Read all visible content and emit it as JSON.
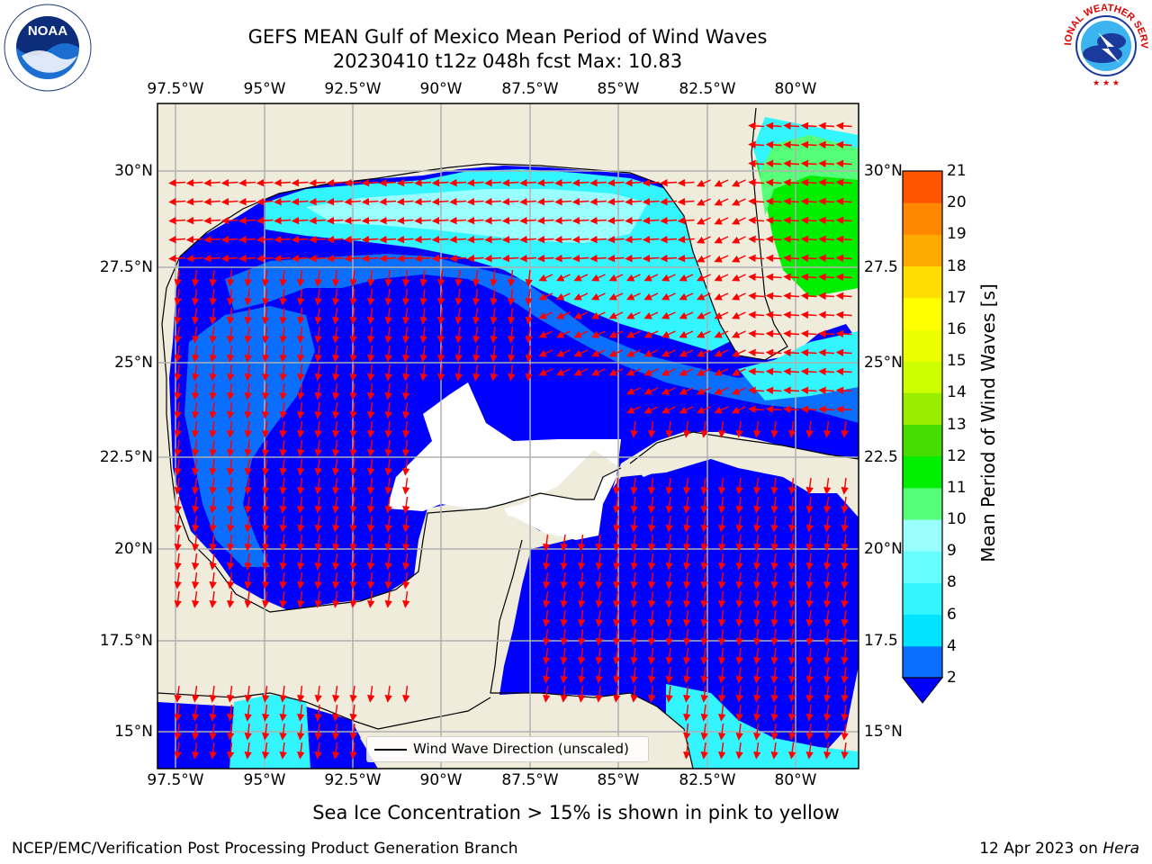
{
  "title": {
    "line1": "GEFS MEAN Gulf of Mexico Mean Period of Wind Waves",
    "line2": "20230410 t12z 048h fcst   Max: 10.83"
  },
  "map": {
    "lon_labels": [
      "97.5°W",
      "95°W",
      "92.5°W",
      "90°W",
      "87.5°W",
      "85°W",
      "82.5°W",
      "80°W"
    ],
    "lat_labels_left": [
      "30°N",
      "27.5°N",
      "25°N",
      "22.5°N",
      "20°N",
      "17.5°N",
      "15°N"
    ],
    "lat_labels_right": [
      "30°N",
      "27.5",
      "25°N",
      "22.5",
      "20°N",
      "17.5",
      "15°N"
    ],
    "land_color": "#efecdc",
    "ocean_color": "#0000ff",
    "arrow_color": "#ff0000",
    "legend_label": "Wind Wave Direction (unscaled)"
  },
  "colorbar": {
    "label": "Mean Period of Wind Waves [s]",
    "ticks": [
      "2",
      "4",
      "6",
      "8",
      "9",
      "10",
      "11",
      "12",
      "13",
      "14",
      "15",
      "16",
      "17",
      "18",
      "19",
      "20",
      "21"
    ],
    "colors": [
      "#0a6eff",
      "#00e4ff",
      "#33f5ff",
      "#66ffff",
      "#99ffff",
      "#55ff77",
      "#00ee00",
      "#44dd00",
      "#99ee00",
      "#ccff00",
      "#eeff00",
      "#ffff00",
      "#ffdd00",
      "#ffaa00",
      "#ff8800",
      "#ff5500",
      "#ff2200",
      "#ff0000"
    ],
    "under_color": "#0000ff"
  },
  "note": "Sea Ice Concentration > 15% is shown in pink to yellow",
  "footer": {
    "left": "NCEP/EMC/Verification Post Processing Product Generation Branch",
    "right_prefix": "12 Apr 2023 on ",
    "right_host": "Hera"
  },
  "logos": {
    "noaa": "NOAA",
    "nws": "NATIONAL WEATHER SERVICE"
  }
}
